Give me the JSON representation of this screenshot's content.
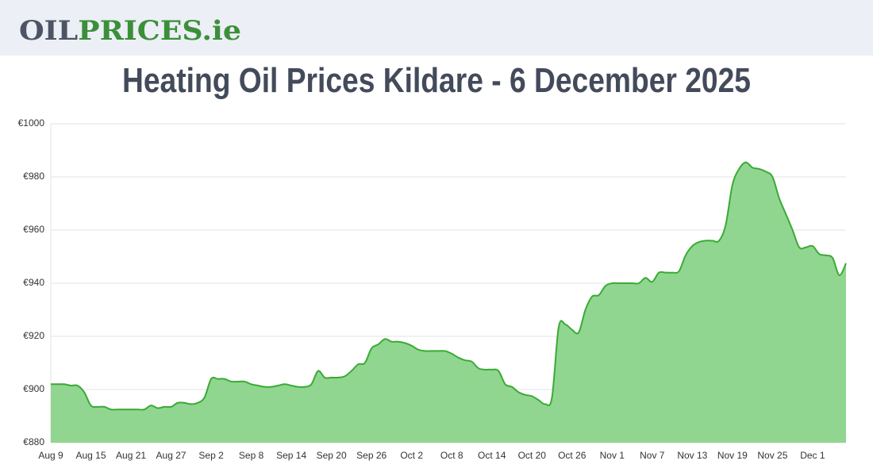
{
  "header": {
    "logo_dark": "OIL",
    "logo_green": "PRICES.ie"
  },
  "chart_data": {
    "type": "area",
    "title": "Heating Oil Prices Kildare - 6 December 2025",
    "categories": [
      "Aug 9",
      null,
      null,
      null,
      null,
      null,
      "Aug 15",
      null,
      null,
      null,
      null,
      null,
      "Aug 21",
      null,
      null,
      null,
      null,
      null,
      "Aug 27",
      null,
      null,
      null,
      null,
      null,
      "Sep 2",
      null,
      null,
      null,
      null,
      null,
      "Sep 8",
      null,
      null,
      null,
      null,
      null,
      "Sep 14",
      null,
      null,
      null,
      null,
      null,
      "Sep 20",
      null,
      null,
      null,
      null,
      null,
      "Sep 26",
      null,
      null,
      null,
      null,
      null,
      "Oct 2",
      null,
      null,
      null,
      null,
      null,
      "Oct 8",
      null,
      null,
      null,
      null,
      null,
      "Oct 14",
      null,
      null,
      null,
      null,
      null,
      "Oct 20",
      null,
      null,
      null,
      null,
      null,
      "Oct 26",
      null,
      null,
      null,
      null,
      null,
      "Nov 1",
      null,
      null,
      null,
      null,
      null,
      "Nov 7",
      null,
      null,
      null,
      null,
      null,
      "Nov 13",
      null,
      null,
      null,
      null,
      null,
      "Nov 19",
      null,
      null,
      null,
      null,
      null,
      "Nov 25",
      null,
      null,
      null,
      null,
      null,
      "Dec 1",
      null,
      null,
      null,
      null,
      null
    ],
    "values": [
      902,
      902,
      902,
      901.5,
      901.5,
      899,
      894,
      893.5,
      893.5,
      892.5,
      892.5,
      892.5,
      892.5,
      892.5,
      892.5,
      894,
      893,
      893.5,
      893.5,
      895,
      895,
      894.5,
      895,
      897,
      904,
      904,
      904,
      903,
      903,
      903,
      902,
      901.5,
      901,
      901,
      901.5,
      902,
      901.5,
      901,
      901,
      902,
      907,
      904.5,
      904.5,
      904.5,
      905,
      907,
      909.5,
      910,
      915.5,
      917,
      919,
      918,
      918,
      917.5,
      916.5,
      915,
      914.5,
      914.5,
      914.5,
      914.5,
      913.5,
      912,
      911,
      910.5,
      908,
      907.5,
      907.5,
      907,
      902,
      901,
      899,
      898,
      897.5,
      896,
      894.5,
      897,
      923.5,
      924.5,
      922.5,
      921.5,
      930,
      935,
      935.5,
      939,
      940,
      940,
      940,
      940,
      940,
      942,
      940.5,
      944,
      944,
      944,
      944.5,
      950.5,
      954,
      955.5,
      956,
      956,
      956,
      962,
      977,
      983,
      985.5,
      983.5,
      983,
      982,
      980,
      972,
      966,
      960,
      953.5,
      953.5,
      954,
      951,
      950.5,
      949.5,
      943,
      947.5
    ],
    "color": "#3aaa35",
    "fill_color": "#90d690",
    "ylim": [
      880,
      1000
    ],
    "yticks": [
      {
        "value": 880,
        "label": "€880"
      },
      {
        "value": 900,
        "label": "€900"
      },
      {
        "value": 920,
        "label": "€920"
      },
      {
        "value": 940,
        "label": "€940"
      },
      {
        "value": 960,
        "label": "€960"
      },
      {
        "value": 980,
        "label": "€980"
      },
      {
        "value": 1000,
        "label": "€1000"
      }
    ],
    "grid": true
  }
}
